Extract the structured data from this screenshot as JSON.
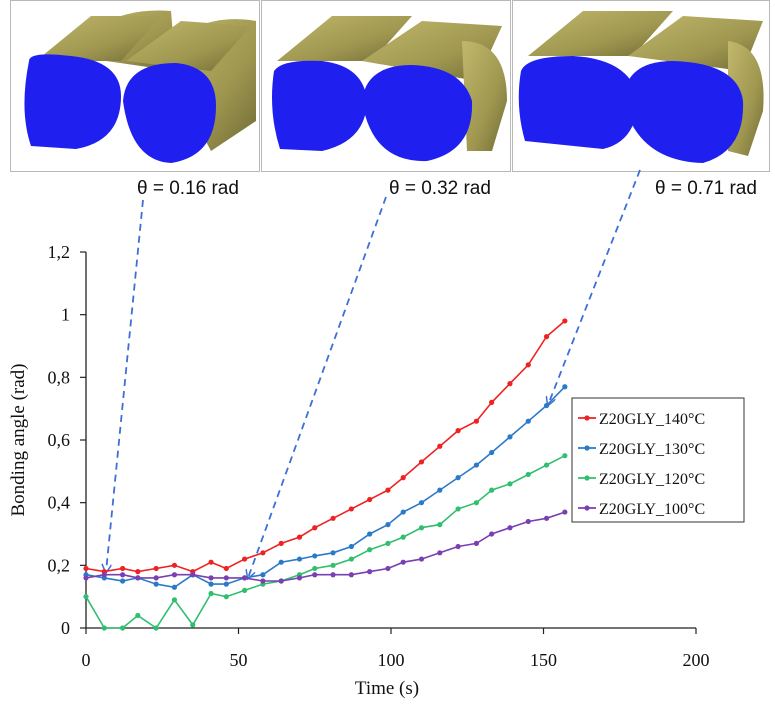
{
  "panels": [
    {
      "theta_label": "θ = 0.16 rad"
    },
    {
      "theta_label": "θ = 0.32 rad"
    },
    {
      "theta_label": "θ = 0.71 rad"
    }
  ],
  "colors": {
    "filament_body": "#a9a15a",
    "filament_shade": "#6f6a35",
    "cross_section": "#1f1ff0",
    "arrow": "#3d6fd6"
  },
  "chart_data": {
    "type": "line",
    "xlabel": "Time (s)",
    "ylabel": "Bonding angle (rad)",
    "xlim": [
      0,
      200
    ],
    "ylim": [
      0,
      1.2
    ],
    "x_ticks": [
      "0",
      "50",
      "100",
      "150",
      "200"
    ],
    "y_ticks": [
      "0",
      "0,2",
      "0,4",
      "0,6",
      "0,8",
      "1",
      "1,2"
    ],
    "grid": false,
    "legend_position": "right",
    "series": [
      {
        "name": "Z20GLY_140°C",
        "color": "#ee2222",
        "x": [
          0,
          6,
          12,
          17,
          23,
          29,
          35,
          41,
          46,
          52,
          58,
          64,
          70,
          75,
          81,
          87,
          93,
          99,
          104,
          110,
          116,
          122,
          128,
          133,
          139,
          145,
          151,
          157
        ],
        "y": [
          0.19,
          0.18,
          0.19,
          0.18,
          0.19,
          0.2,
          0.18,
          0.21,
          0.19,
          0.22,
          0.24,
          0.27,
          0.29,
          0.32,
          0.35,
          0.38,
          0.41,
          0.44,
          0.48,
          0.53,
          0.58,
          0.63,
          0.66,
          0.72,
          0.78,
          0.84,
          0.93,
          0.98
        ]
      },
      {
        "name": "Z20GLY_130°C",
        "color": "#2a7ac9",
        "x": [
          0,
          6,
          12,
          17,
          23,
          29,
          35,
          41,
          46,
          52,
          58,
          64,
          70,
          75,
          81,
          87,
          93,
          99,
          104,
          110,
          116,
          122,
          128,
          133,
          139,
          145,
          151,
          157
        ],
        "y": [
          0.17,
          0.16,
          0.15,
          0.16,
          0.14,
          0.13,
          0.17,
          0.14,
          0.14,
          0.16,
          0.17,
          0.21,
          0.22,
          0.23,
          0.24,
          0.26,
          0.3,
          0.33,
          0.37,
          0.4,
          0.44,
          0.48,
          0.52,
          0.56,
          0.61,
          0.66,
          0.71,
          0.77
        ]
      },
      {
        "name": "Z20GLY_120°C",
        "color": "#2fbf6f",
        "x": [
          0,
          6,
          12,
          17,
          23,
          29,
          35,
          41,
          46,
          52,
          58,
          64,
          70,
          75,
          81,
          87,
          93,
          99,
          104,
          110,
          116,
          122,
          128,
          133,
          139,
          145,
          151,
          157
        ],
        "y": [
          0.1,
          0.0,
          0.0,
          0.04,
          0.0,
          0.09,
          0.01,
          0.11,
          0.1,
          0.12,
          0.14,
          0.15,
          0.17,
          0.19,
          0.2,
          0.22,
          0.25,
          0.27,
          0.29,
          0.32,
          0.33,
          0.38,
          0.4,
          0.44,
          0.46,
          0.49,
          0.52,
          0.55
        ]
      },
      {
        "name": "Z20GLY_100°C",
        "color": "#7a3fb0",
        "x": [
          0,
          6,
          12,
          17,
          23,
          29,
          35,
          41,
          46,
          52,
          58,
          64,
          70,
          75,
          81,
          87,
          93,
          99,
          104,
          110,
          116,
          122,
          128,
          133,
          139,
          145,
          151,
          157
        ],
        "y": [
          0.16,
          0.17,
          0.17,
          0.16,
          0.16,
          0.17,
          0.17,
          0.16,
          0.16,
          0.16,
          0.15,
          0.15,
          0.16,
          0.17,
          0.17,
          0.17,
          0.18,
          0.19,
          0.21,
          0.22,
          0.24,
          0.26,
          0.27,
          0.3,
          0.32,
          0.34,
          0.35,
          0.37
        ]
      }
    ]
  }
}
